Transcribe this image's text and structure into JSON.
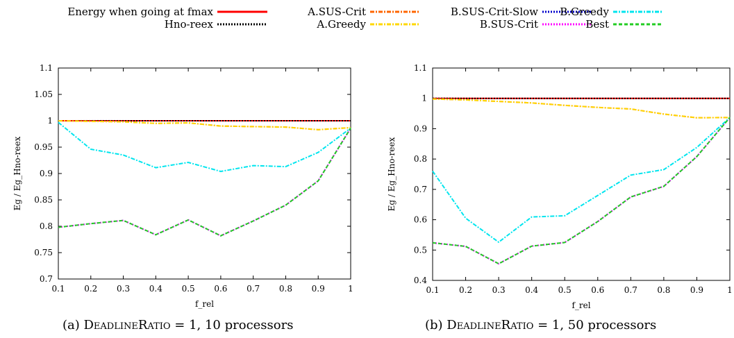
{
  "legend": [
    {
      "name": "Energy when going at fmax",
      "color": "#ff0000",
      "dash": "solid"
    },
    {
      "name": "Hno-reex",
      "color": "#000000",
      "dash": "dotted"
    },
    {
      "name": "A.SUS-Crit",
      "color": "#ff6600",
      "dash": "dashdot"
    },
    {
      "name": "A.Greedy",
      "color": "#ffd700",
      "dash": "dashdot"
    },
    {
      "name": "B.SUS-Crit-Slow",
      "color": "#0000cc",
      "dash": "dotted"
    },
    {
      "name": "B.SUS-Crit",
      "color": "#ff00ff",
      "dash": "dotted"
    },
    {
      "name": "B.Greedy",
      "color": "#00e5ee",
      "dash": "dashdot"
    },
    {
      "name": "Best",
      "color": "#22cc22",
      "dash": "dashed"
    }
  ],
  "captions": [
    {
      "prefix": "(a) ",
      "sc": "DeadlineRatio",
      "suffix": " = 1, 10 processors"
    },
    {
      "prefix": "(b) ",
      "sc": "DeadlineRatio",
      "suffix": " = 1, 50 processors"
    }
  ],
  "chart_data": [
    {
      "type": "line",
      "xlabel": "f_rel",
      "ylabel": "Eg / Eg_Hno-reex",
      "x": [
        0.1,
        0.2,
        0.3,
        0.4,
        0.5,
        0.6,
        0.7,
        0.8,
        0.9,
        1
      ],
      "xlim": [
        0.1,
        1
      ],
      "ylim": [
        0.7,
        1.1
      ],
      "xticks": [
        "0.1",
        "0.2",
        "0.3",
        "0.4",
        "0.5",
        "0.6",
        "0.7",
        "0.8",
        "0.9",
        "1"
      ],
      "yticks": [
        "0.7",
        "0.75",
        "0.8",
        "0.85",
        "0.9",
        "0.95",
        "1",
        "1.05",
        "1.1"
      ],
      "series": [
        {
          "name": "Energy when going at fmax",
          "values": [
            1,
            1,
            1,
            1,
            1,
            1,
            1,
            1,
            1,
            1
          ]
        },
        {
          "name": "Hno-reex",
          "values": [
            1,
            1,
            1,
            1,
            1,
            1,
            1,
            1,
            1,
            1
          ]
        },
        {
          "name": "A.SUS-Crit",
          "values": [
            1.0,
            0.999,
            0.998,
            0.995,
            0.996,
            0.99,
            0.989,
            0.988,
            0.983,
            0.987
          ]
        },
        {
          "name": "A.Greedy",
          "values": [
            1.0,
            0.999,
            0.998,
            0.995,
            0.996,
            0.99,
            0.989,
            0.988,
            0.983,
            0.987
          ]
        },
        {
          "name": "B.SUS-Crit-Slow",
          "values": [
            0.798,
            0.805,
            0.811,
            0.784,
            0.812,
            0.782,
            0.81,
            0.84,
            0.886,
            0.986
          ]
        },
        {
          "name": "B.SUS-Crit",
          "values": [
            0.798,
            0.805,
            0.811,
            0.784,
            0.812,
            0.782,
            0.81,
            0.84,
            0.886,
            0.986
          ]
        },
        {
          "name": "B.Greedy",
          "values": [
            0.997,
            0.946,
            0.935,
            0.911,
            0.921,
            0.904,
            0.915,
            0.913,
            0.94,
            0.986
          ]
        },
        {
          "name": "Best",
          "values": [
            0.798,
            0.805,
            0.811,
            0.784,
            0.812,
            0.782,
            0.81,
            0.84,
            0.886,
            0.986
          ]
        }
      ]
    },
    {
      "type": "line",
      "xlabel": "f_rel",
      "ylabel": "Eg / Eg_Hno-reex",
      "x": [
        0.1,
        0.2,
        0.3,
        0.4,
        0.5,
        0.6,
        0.7,
        0.8,
        0.9,
        1
      ],
      "xlim": [
        0.1,
        1
      ],
      "ylim": [
        0.4,
        1.1
      ],
      "xticks": [
        "0.1",
        "0.2",
        "0.3",
        "0.4",
        "0.5",
        "0.6",
        "0.7",
        "0.8",
        "0.9",
        "1"
      ],
      "yticks": [
        "0.4",
        "0.5",
        "0.6",
        "0.7",
        "0.8",
        "0.9",
        "1",
        "1.1"
      ],
      "series": [
        {
          "name": "Energy when going at fmax",
          "values": [
            1,
            1,
            1,
            1,
            1,
            1,
            1,
            1,
            1,
            1
          ]
        },
        {
          "name": "Hno-reex",
          "values": [
            1,
            1,
            1,
            1,
            1,
            1,
            1,
            1,
            1,
            1
          ]
        },
        {
          "name": "A.SUS-Crit",
          "values": [
            0.998,
            0.995,
            0.99,
            0.985,
            0.977,
            0.97,
            0.965,
            0.948,
            0.936,
            0.937
          ]
        },
        {
          "name": "A.Greedy",
          "values": [
            0.998,
            0.995,
            0.99,
            0.985,
            0.977,
            0.97,
            0.965,
            0.948,
            0.936,
            0.937
          ]
        },
        {
          "name": "B.SUS-Crit-Slow",
          "values": [
            0.524,
            0.512,
            0.455,
            0.513,
            0.525,
            0.594,
            0.675,
            0.71,
            0.808,
            0.937
          ]
        },
        {
          "name": "B.SUS-Crit",
          "values": [
            0.524,
            0.512,
            0.455,
            0.513,
            0.525,
            0.594,
            0.675,
            0.71,
            0.808,
            0.937
          ]
        },
        {
          "name": "B.Greedy",
          "values": [
            0.76,
            0.605,
            0.526,
            0.609,
            0.613,
            0.68,
            0.747,
            0.765,
            0.838,
            0.937
          ]
        },
        {
          "name": "Best",
          "values": [
            0.524,
            0.512,
            0.455,
            0.513,
            0.525,
            0.594,
            0.675,
            0.71,
            0.808,
            0.937
          ]
        }
      ]
    }
  ]
}
